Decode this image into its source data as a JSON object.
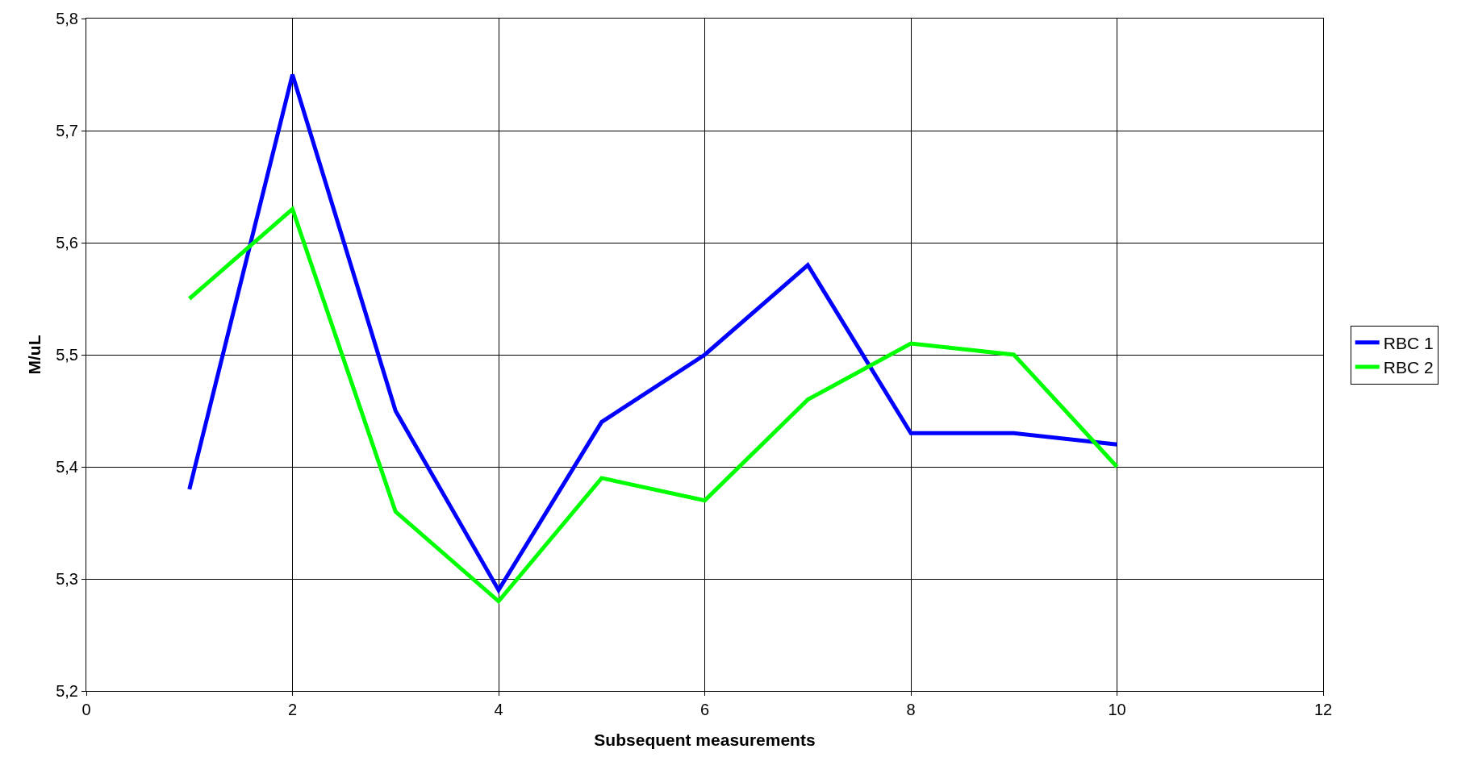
{
  "chart_data": {
    "type": "line",
    "xlabel": "Subsequent measurements",
    "ylabel": "M/uL",
    "x": [
      1,
      2,
      3,
      4,
      5,
      6,
      7,
      8,
      9,
      10
    ],
    "series": [
      {
        "name": "RBC 1",
        "color": "#0000ff",
        "values": [
          5.38,
          5.75,
          5.45,
          5.29,
          5.44,
          5.5,
          5.58,
          5.43,
          5.43,
          5.42
        ]
      },
      {
        "name": "RBC 2",
        "color": "#00ff00",
        "values": [
          5.55,
          5.63,
          5.36,
          5.28,
          5.39,
          5.37,
          5.46,
          5.51,
          5.5,
          5.4
        ]
      }
    ],
    "xlim": [
      0,
      12
    ],
    "xticks": [
      0,
      2,
      4,
      6,
      8,
      10,
      12
    ],
    "ylim": [
      5.2,
      5.8
    ],
    "yticks": [
      {
        "value": 5.2,
        "label": "5,2"
      },
      {
        "value": 5.3,
        "label": "5,3"
      },
      {
        "value": 5.4,
        "label": "5,4"
      },
      {
        "value": 5.5,
        "label": "5,5"
      },
      {
        "value": 5.6,
        "label": "5,6"
      },
      {
        "value": 5.7,
        "label": "5,7"
      },
      {
        "value": 5.8,
        "label": "5,8"
      }
    ],
    "grid": true,
    "legend": "right",
    "marker": "none",
    "line_style": "solid"
  }
}
